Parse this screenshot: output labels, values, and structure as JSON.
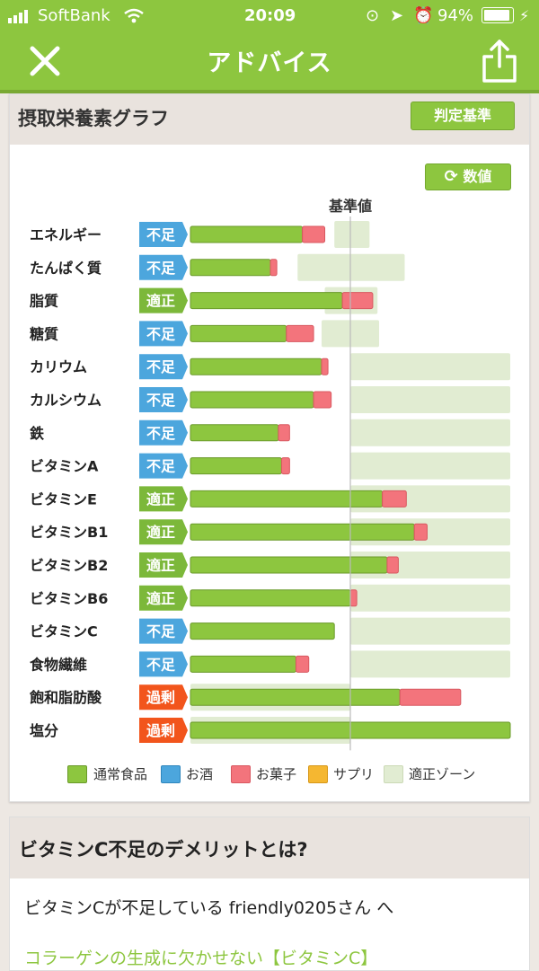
{
  "status": {
    "carrier": "SoftBank",
    "time": "20:09",
    "battery": "94%",
    "battery_level": 0.94
  },
  "nav": {
    "title": "アドバイス"
  },
  "card": {
    "title": "摂取栄養素グラフ",
    "criteria_button": "判定基準",
    "toggle_button": "数値"
  },
  "chart_data": {
    "type": "bar",
    "baseline_label": "基準値",
    "scale_max": 200,
    "baseline_value": 100,
    "series_names": [
      "通常食品",
      "お酒",
      "お菓子",
      "サプリ"
    ],
    "rows": [
      {
        "name": "エネルギー",
        "status": "不足",
        "food": 70,
        "snack": 14,
        "zone": [
          90,
          112
        ]
      },
      {
        "name": "たんぱく質",
        "status": "不足",
        "food": 50,
        "snack": 4,
        "zone": [
          67,
          134
        ]
      },
      {
        "name": "脂質",
        "status": "適正",
        "food": 95,
        "snack": 19,
        "zone": [
          84,
          117
        ]
      },
      {
        "name": "糖質",
        "status": "不足",
        "food": 60,
        "snack": 17,
        "zone": [
          82,
          118
        ]
      },
      {
        "name": "カリウム",
        "status": "不足",
        "food": 82,
        "snack": 4,
        "zone": [
          100,
          200
        ]
      },
      {
        "name": "カルシウム",
        "status": "不足",
        "food": 77,
        "snack": 11,
        "zone": [
          100,
          200
        ]
      },
      {
        "name": "鉄",
        "status": "不足",
        "food": 55,
        "snack": 7,
        "zone": [
          100,
          200
        ]
      },
      {
        "name": "ビタミンA",
        "status": "不足",
        "food": 57,
        "snack": 5,
        "zone": [
          100,
          200
        ]
      },
      {
        "name": "ビタミンE",
        "status": "適正",
        "food": 120,
        "snack": 15,
        "zone": [
          100,
          200
        ]
      },
      {
        "name": "ビタミンB1",
        "status": "適正",
        "food": 140,
        "snack": 8,
        "zone": [
          100,
          200
        ]
      },
      {
        "name": "ビタミンB2",
        "status": "適正",
        "food": 123,
        "snack": 7,
        "zone": [
          100,
          200
        ]
      },
      {
        "name": "ビタミンB6",
        "status": "適正",
        "food": 100,
        "snack": 4,
        "zone": [
          100,
          200
        ]
      },
      {
        "name": "ビタミンC",
        "status": "不足",
        "food": 90,
        "snack": 0,
        "zone": [
          100,
          200
        ]
      },
      {
        "name": "食物繊維",
        "status": "不足",
        "food": 66,
        "snack": 8,
        "zone": [
          100,
          200
        ]
      },
      {
        "name": "飽和脂肪酸",
        "status": "過剰",
        "food": 131,
        "snack": 38,
        "zone": [
          0,
          100
        ]
      },
      {
        "name": "塩分",
        "status": "過剰",
        "food": 200,
        "snack": 0,
        "zone": [
          0,
          100
        ]
      }
    ],
    "legend": [
      "通常食品",
      "お酒",
      "お菓子",
      "サプリ",
      "適正ゾーン"
    ]
  },
  "colors": {
    "food": "#8dc63f",
    "alcohol": "#4ca6dd",
    "snack": "#f3747c",
    "supplement": "#f5b731",
    "zone": "#e1ecd2",
    "shortage": "#4ca6dd",
    "adequate": "#7cb83a",
    "excess": "#f2551c"
  },
  "advice": {
    "title": "ビタミンC不足のデメリットとは?",
    "body": "ビタミンCが不足している friendly0205さん へ",
    "link": "コラーゲンの生成に欠かせない【ビタミンC】"
  }
}
